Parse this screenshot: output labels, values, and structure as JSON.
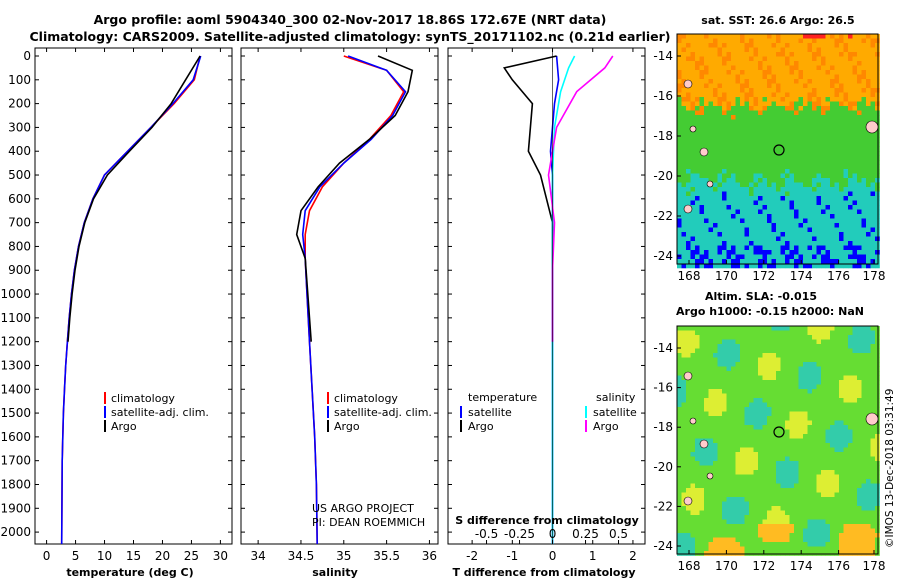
{
  "header": {
    "line1": "Argo profile: aoml 5904340_300 02-Nov-2017 18.86S 172.67E (NRT data)",
    "line2": "Climatology: CARS2009. Satellite-adjusted climatology: synTS_20171102.nc (0.21d earlier)"
  },
  "colors": {
    "climatology": "#ff0000",
    "satellite": "#0000ff",
    "argo": "#000000",
    "satellite_s": "#00ffff",
    "argo_s": "#ff00ff"
  },
  "yticks": [
    "0",
    "100",
    "200",
    "300",
    "400",
    "500",
    "600",
    "700",
    "800",
    "900",
    "1000",
    "1100",
    "1200",
    "1300",
    "1400",
    "1500",
    "1600",
    "1700",
    "1800",
    "1900",
    "2000"
  ],
  "depth_axis": {
    "min": 0,
    "max": 2050
  },
  "panels": {
    "temperature": {
      "xlabel": "temperature (deg C)",
      "xticks": [
        "0",
        "5",
        "10",
        "15",
        "20",
        "25",
        "30"
      ],
      "xlim": [
        -2,
        32
      ],
      "legend": [
        "climatology",
        "satellite-adj. clim.",
        "Argo"
      ]
    },
    "salinity": {
      "xlabel": "salinity",
      "xticks": [
        "34",
        "34.5",
        "35",
        "35.5",
        "36"
      ],
      "xlim": [
        33.8,
        36.1
      ],
      "legend": [
        "climatology",
        "satellite-adj. clim.",
        "Argo"
      ],
      "credit1": "US ARGO PROJECT",
      "credit2": "PI: DEAN ROEMMICH"
    },
    "difference": {
      "xlabel": "T difference from climatology",
      "xticks": [
        "-2",
        "-1",
        "0",
        "1",
        "2"
      ],
      "xlim": [
        -2.6,
        2.3
      ],
      "s_label": "S difference from climatology",
      "s_ticks": [
        "-0.5",
        "-0.25",
        "0",
        "0.25",
        "0.5"
      ],
      "legend_t_title": "temperature",
      "legend_s_title": "salinity",
      "legend_t": [
        "satellite",
        "Argo"
      ],
      "legend_s": [
        "satellite",
        "Argo"
      ]
    }
  },
  "maps": {
    "sst": {
      "title": "sat. SST: 26.6 Argo: 26.5",
      "lat_ticks": [
        "-14",
        "-16",
        "-18",
        "-20",
        "-22",
        "-24"
      ],
      "lon_ticks": [
        "168",
        "170",
        "172",
        "174",
        "176",
        "178"
      ],
      "colors": {
        "warm": "#ffaa00",
        "orange": "#ff8800",
        "green": "#44cc33",
        "teal": "#22ccbb",
        "blue": "#0000ff",
        "red": "#ff2222",
        "land": "#ffcccc"
      }
    },
    "sla": {
      "title1": "Altim. SLA: -0.015",
      "title2": "Argo h1000: -0.15 h2000: NaN",
      "lat_ticks": [
        "-14",
        "-16",
        "-18",
        "-20",
        "-22",
        "-24"
      ],
      "lon_ticks": [
        "168",
        "170",
        "172",
        "174",
        "176",
        "178"
      ],
      "colors": {
        "base": "#66dd33",
        "yellow": "#ddee33",
        "orange": "#ffbb22",
        "teal": "#33ccaa",
        "land": "#ffcccc"
      }
    }
  },
  "stamp": "©IMOS 13-Dec-2018 03:31:49",
  "chart_data": [
    {
      "type": "line",
      "title": "",
      "xlabel": "temperature (deg C)",
      "ylabel": "",
      "xlim": [
        -2,
        32
      ],
      "ylim": [
        2050,
        0
      ],
      "series": [
        {
          "name": "climatology",
          "x": [
            26.5,
            25.5,
            22,
            18,
            14,
            10,
            8,
            6.5,
            5.5,
            4.8,
            4.3,
            3.9,
            3.6,
            3.3,
            3.1,
            2.9,
            2.7,
            2.6
          ],
          "y": [
            0,
            100,
            200,
            300,
            400,
            500,
            600,
            700,
            800,
            900,
            1000,
            1100,
            1200,
            1300,
            1400,
            1500,
            1700,
            2050
          ]
        },
        {
          "name": "satellite-adj. clim.",
          "x": [
            26.6,
            25.3,
            21.8,
            18,
            14,
            10,
            8,
            6.5,
            5.5,
            4.8,
            4.3,
            3.9,
            3.6,
            3.3,
            3.1,
            2.9,
            2.7,
            2.6
          ],
          "y": [
            0,
            100,
            200,
            300,
            400,
            500,
            600,
            700,
            800,
            900,
            1000,
            1100,
            1200,
            1300,
            1400,
            1500,
            1700,
            2050
          ]
        },
        {
          "name": "Argo",
          "x": [
            26.5,
            24,
            21.5,
            18.2,
            14.3,
            10.5,
            8.1,
            6.6,
            5.6,
            4.9,
            4.4,
            4.0,
            3.7
          ],
          "y": [
            0,
            100,
            200,
            300,
            400,
            500,
            600,
            700,
            800,
            900,
            1000,
            1100,
            1200
          ]
        }
      ]
    },
    {
      "type": "line",
      "title": "",
      "xlabel": "salinity",
      "ylabel": "",
      "xlim": [
        33.8,
        36.1
      ],
      "ylim": [
        2050,
        0
      ],
      "series": [
        {
          "name": "climatology",
          "x": [
            35.0,
            35.5,
            35.7,
            35.55,
            35.3,
            35.0,
            34.75,
            34.6,
            34.55,
            34.55,
            34.57,
            34.6,
            34.63,
            34.66,
            34.68,
            34.69
          ],
          "y": [
            0,
            60,
            150,
            250,
            350,
            450,
            550,
            650,
            750,
            850,
            1000,
            1200,
            1400,
            1600,
            1800,
            2050
          ]
        },
        {
          "name": "satellite-adj. clim.",
          "x": [
            35.05,
            35.5,
            35.72,
            35.57,
            35.32,
            35.0,
            34.72,
            34.55,
            34.52,
            34.55,
            34.57,
            34.6,
            34.63,
            34.66,
            34.68,
            34.69
          ],
          "y": [
            0,
            60,
            150,
            250,
            350,
            450,
            550,
            650,
            750,
            850,
            1000,
            1200,
            1400,
            1600,
            1800,
            2050
          ]
        },
        {
          "name": "Argo",
          "x": [
            35.4,
            35.8,
            35.75,
            35.6,
            35.3,
            34.95,
            34.7,
            34.5,
            34.45,
            34.55,
            34.58,
            34.6,
            34.62
          ],
          "y": [
            0,
            60,
            150,
            250,
            350,
            450,
            550,
            650,
            750,
            850,
            1000,
            1100,
            1200
          ]
        }
      ]
    },
    {
      "type": "line",
      "title": "",
      "xlabel": "T difference from climatology",
      "ylabel": "",
      "xlim": [
        -2.6,
        2.3
      ],
      "ylim": [
        2050,
        0
      ],
      "series": [
        {
          "name": "satellite",
          "x": [
            0.1,
            0.15,
            0.05,
            0.0,
            -0.05,
            0.0,
            0.0,
            0.0,
            0.0,
            0.0
          ],
          "y": [
            0,
            100,
            200,
            300,
            400,
            500,
            700,
            1000,
            1500,
            2050
          ]
        },
        {
          "name": "Argo",
          "x": [
            0.1,
            -1.2,
            -1.0,
            -0.5,
            -0.6,
            -0.3,
            0.0,
            0.0,
            0.0
          ],
          "y": [
            0,
            50,
            100,
            200,
            400,
            500,
            700,
            900,
            1200
          ]
        },
        {
          "name": "satellite (S)",
          "x": [
            0.55,
            0.4,
            0.2,
            0.05,
            0.0,
            0.0,
            0.0,
            0.0
          ],
          "y": [
            0,
            50,
            150,
            300,
            500,
            700,
            1000,
            2050
          ]
        },
        {
          "name": "Argo (S)",
          "x": [
            1.5,
            1.3,
            0.6,
            0.1,
            -0.1,
            0.05,
            0.0,
            0.0
          ],
          "y": [
            0,
            50,
            150,
            300,
            500,
            700,
            900,
            1200
          ]
        }
      ]
    }
  ]
}
